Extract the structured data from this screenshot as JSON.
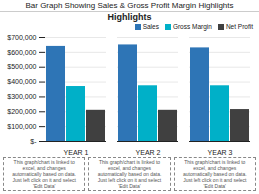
{
  "chart_data": {
    "type": "bar",
    "title": "Bar Graph Showing Sales & Gross Profit Margin Highlights",
    "subtitle": "Highlights",
    "categories": [
      "YEAR 1",
      "YEAR 2",
      "YEAR 3"
    ],
    "series": [
      {
        "name": "Sales",
        "color": "#2e75b6",
        "values": [
          640000,
          650000,
          630000
        ]
      },
      {
        "name": "Gross Margin",
        "color": "#00b0c8",
        "values": [
          370000,
          375000,
          375000
        ]
      },
      {
        "name": "Net Profit",
        "color": "#404040",
        "values": [
          210000,
          210000,
          215000
        ]
      }
    ],
    "ylim": [
      0,
      700000
    ],
    "yticks": [
      {
        "value": 0,
        "label": "$-"
      },
      {
        "value": 100000,
        "label": "$100,000"
      },
      {
        "value": 200000,
        "label": "$200,000"
      },
      {
        "value": 300000,
        "label": "$300,000"
      },
      {
        "value": 400000,
        "label": "$400,000"
      },
      {
        "value": 500000,
        "label": "$500,000"
      },
      {
        "value": 600000,
        "label": "$600,000"
      },
      {
        "value": 700000,
        "label": "$700,000"
      }
    ],
    "grid": true,
    "legend": "upper right",
    "annotations": [
      "This graph/chart is linked to\nexcel, and changes\nautomatically based on data.\nJust left click on it and select\n'Edit Data'",
      "This graph/chart is linked to\nexcel, and changes\nautomatically based on data.\nJust left click on it and select\n'Edit Data'",
      "This graph/chart is linked to\nexcel, and changes\nautomatically based on data.\nJust left click on it and select\n'Edit Data'"
    ]
  }
}
